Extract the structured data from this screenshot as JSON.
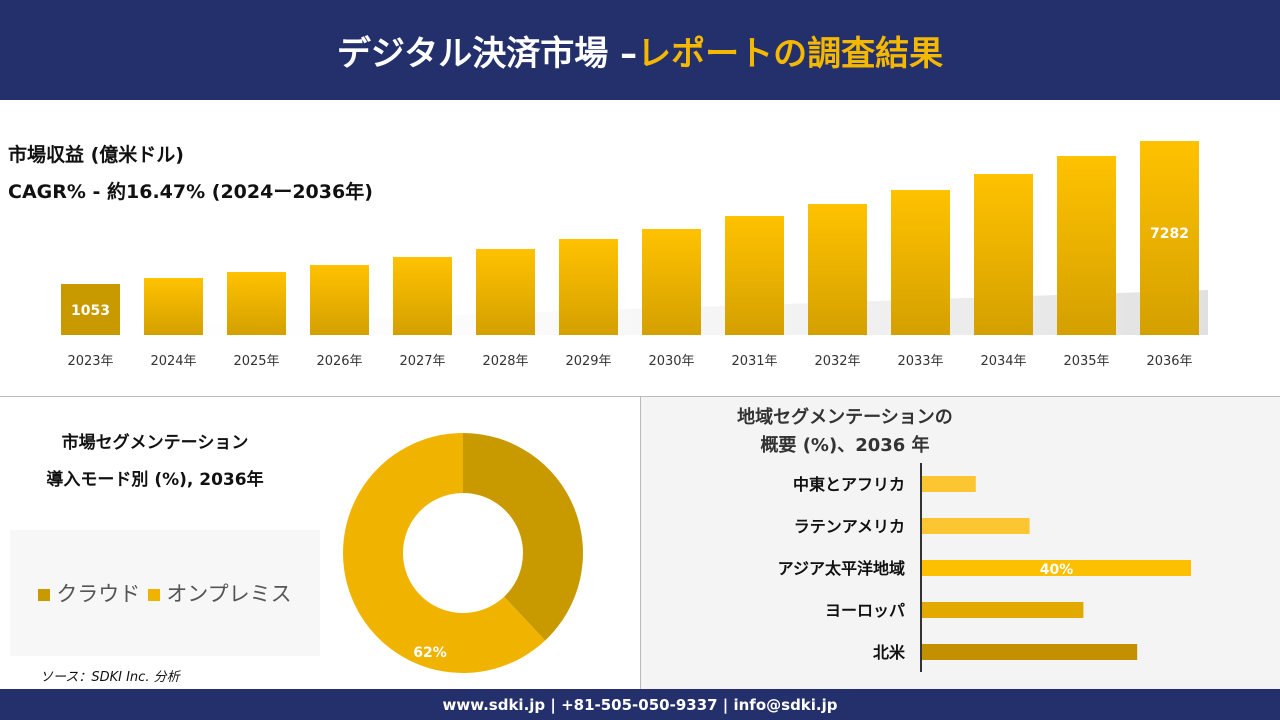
{
  "header": {
    "title_main": "デジタル決済市場 –",
    "title_accent": "レポートの調査結果"
  },
  "revenue": {
    "label": "市場収益 (億米ドル)",
    "cagr": "CAGR% - 約16.47% (2024ー2036年)"
  },
  "chart_data": [
    {
      "type": "bar",
      "ylabel": "市場収益 (億米ドル)",
      "categories": [
        "2023年",
        "2024年",
        "2025年",
        "2026年",
        "2027年",
        "2028年",
        "2029年",
        "2030年",
        "2031年",
        "2032年",
        "2033年",
        "2034年",
        "2035年",
        "2036年"
      ],
      "values": [
        1053,
        1315,
        1576,
        1881,
        2230,
        2578,
        3014,
        3449,
        4016,
        4538,
        5148,
        5845,
        6629,
        7282
      ],
      "data_labels": {
        "0": "1053",
        "13": "7282"
      }
    },
    {
      "type": "pie",
      "title": "市場セグメンテーション 導入モード別 (%), 2036年",
      "labels": [
        "クラウド",
        "オンプレミス"
      ],
      "values": [
        38,
        62
      ],
      "data_labels": {
        "1": "62%"
      },
      "colors": [
        "#c89a00",
        "#f0b400"
      ],
      "legend": "left"
    },
    {
      "type": "bar",
      "orientation": "horizontal",
      "title": "地域セグメンテーションの 概要 (%)、2036 年",
      "categories": [
        "中東とアフリカ",
        "ラテンアメリカ",
        "アジア太平洋地域",
        "ヨーロッパ",
        "北米"
      ],
      "values": [
        8,
        16,
        40,
        24,
        32
      ],
      "data_labels": {
        "2": "40%"
      },
      "colors": [
        "#fcc633",
        "#fcc633",
        "#fcc000",
        "#e2aa00",
        "#c29000"
      ]
    }
  ],
  "segment": {
    "title1": "市場セグメンテーション",
    "title2": "導入モード別 (%), 2036年"
  },
  "region": {
    "title1": "地域セグメンテーションの",
    "title2": "概要 (%)、2036 年"
  },
  "source": "ソース：SDKI Inc. 分析",
  "footer": "www.sdki.jp | +81-505-050-9337 | info@sdki.jp"
}
